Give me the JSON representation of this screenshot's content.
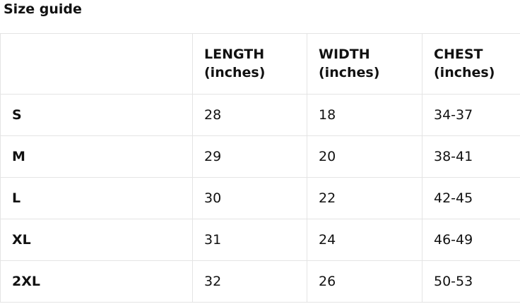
{
  "page": {
    "title": "Size guide"
  },
  "table": {
    "headers": [
      "LENGTH (inches)",
      "WIDTH (inches)",
      "CHEST (inches)"
    ],
    "rows": [
      {
        "size": "S",
        "length": "28",
        "width": "18",
        "chest": "34-37"
      },
      {
        "size": "M",
        "length": "29",
        "width": "20",
        "chest": "38-41"
      },
      {
        "size": "L",
        "length": "30",
        "width": "22",
        "chest": "42-45"
      },
      {
        "size": "XL",
        "length": "31",
        "width": "24",
        "chest": "46-49"
      },
      {
        "size": "2XL",
        "length": "32",
        "width": "26",
        "chest": "50-53"
      }
    ]
  },
  "colors": {
    "text": "#111111",
    "border": "#e4e4e4",
    "background": "#ffffff"
  }
}
